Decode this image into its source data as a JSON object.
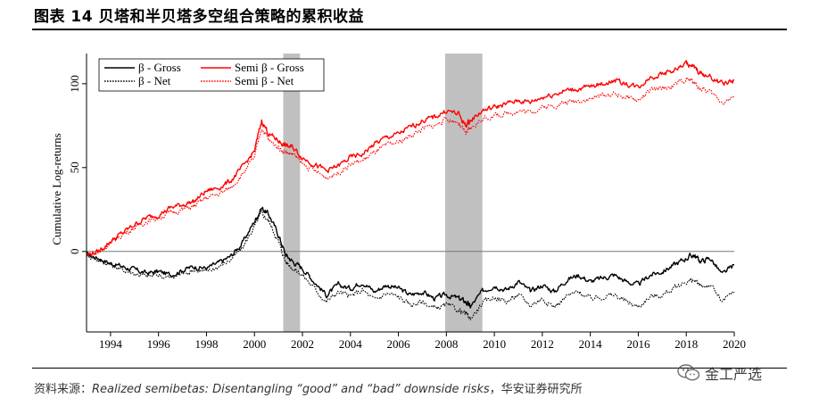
{
  "title": "图表 14 贝塔和半贝塔多空组合策略的累积收益",
  "source": {
    "prefix": "资料来源：",
    "citation": "Realized semibetas: Disentangling “good” and “bad” downside risks",
    "suffix": "，华安证券研究所"
  },
  "watermark": {
    "text": "金工严选",
    "icon": "wechat-icon"
  },
  "chart_data": {
    "type": "line",
    "title": "",
    "xlabel": "",
    "ylabel": "Cumulative Log-returns",
    "xlim": [
      1993,
      2020
    ],
    "ylim": [
      -48,
      118
    ],
    "x_ticks": [
      "1994",
      "1996",
      "1998",
      "2000",
      "2002",
      "2004",
      "2006",
      "2008",
      "2010",
      "2012",
      "2014",
      "2016",
      "2018",
      "2020"
    ],
    "y_ticks": [
      "0",
      "50",
      "100"
    ],
    "zero_line": 0,
    "legend": {
      "position": "top-left"
    },
    "shaded_periods": [
      [
        2001.2,
        2001.9
      ],
      [
        2007.95,
        2009.5
      ]
    ],
    "series_style": {
      "beta_gross": {
        "color": "#000000",
        "dash": ""
      },
      "beta_net": {
        "color": "#000000",
        "dash": "1.6 1.4"
      },
      "semi_gross": {
        "color": "#ff0000",
        "dash": ""
      },
      "semi_net": {
        "color": "#ff0000",
        "dash": "1.6 1.4"
      }
    },
    "x": [
      1993.0,
      1993.5,
      1994.0,
      1994.5,
      1995.0,
      1995.5,
      1996.0,
      1996.5,
      1997.0,
      1997.5,
      1998.0,
      1998.5,
      1999.0,
      1999.5,
      2000.0,
      2000.3,
      2000.6,
      2001.0,
      2001.3,
      2001.6,
      2002.0,
      2002.5,
      2003.0,
      2003.5,
      2004.0,
      2004.5,
      2005.0,
      2005.5,
      2006.0,
      2006.5,
      2007.0,
      2007.5,
      2008.0,
      2008.5,
      2008.8,
      2009.0,
      2009.5,
      2010.0,
      2010.5,
      2011.0,
      2011.5,
      2012.0,
      2012.5,
      2013.0,
      2013.5,
      2014.0,
      2014.5,
      2015.0,
      2015.5,
      2016.0,
      2016.5,
      2017.0,
      2017.5,
      2018.0,
      2018.3,
      2018.6,
      2019.0,
      2019.5,
      2020.0
    ],
    "series": [
      {
        "key": "beta_gross",
        "name": "β - Gross",
        "values": [
          -2,
          -4,
          -7,
          -9,
          -11,
          -13,
          -12,
          -14,
          -11,
          -9,
          -10,
          -7,
          -3,
          5,
          18,
          26,
          22,
          10,
          -2,
          -6,
          -10,
          -18,
          -26,
          -20,
          -22,
          -18,
          -24,
          -20,
          -22,
          -26,
          -24,
          -28,
          -26,
          -28,
          -30,
          -33,
          -24,
          -20,
          -23,
          -18,
          -24,
          -20,
          -24,
          -17,
          -14,
          -18,
          -16,
          -14,
          -18,
          -20,
          -14,
          -12,
          -8,
          -4,
          -2,
          -6,
          -4,
          -14,
          -8
        ]
      },
      {
        "key": "beta_net",
        "name": "β - Net",
        "values": [
          -2,
          -5,
          -8,
          -11,
          -13,
          -15,
          -14,
          -16,
          -13,
          -11,
          -12,
          -9,
          -5,
          2,
          15,
          23,
          18,
          6,
          -6,
          -10,
          -14,
          -22,
          -30,
          -24,
          -27,
          -23,
          -29,
          -25,
          -27,
          -32,
          -30,
          -34,
          -32,
          -35,
          -37,
          -40,
          -31,
          -27,
          -30,
          -26,
          -32,
          -28,
          -33,
          -27,
          -24,
          -28,
          -27,
          -26,
          -30,
          -33,
          -27,
          -26,
          -22,
          -18,
          -17,
          -21,
          -20,
          -30,
          -24
        ]
      },
      {
        "key": "semi_gross",
        "name": "Semi β - Gross",
        "values": [
          -2,
          0,
          6,
          11,
          16,
          20,
          22,
          26,
          28,
          30,
          36,
          38,
          42,
          50,
          60,
          78,
          70,
          66,
          63,
          62,
          56,
          52,
          48,
          51,
          56,
          58,
          64,
          68,
          70,
          74,
          78,
          80,
          84,
          82,
          75,
          78,
          84,
          86,
          88,
          90,
          89,
          92,
          94,
          96,
          97,
          98,
          100,
          102,
          100,
          98,
          104,
          106,
          108,
          112,
          110,
          106,
          104,
          100,
          102
        ]
      },
      {
        "key": "semi_net",
        "name": "Semi β - Net",
        "values": [
          -2,
          -1,
          5,
          10,
          14,
          18,
          20,
          23,
          25,
          27,
          32,
          34,
          38,
          46,
          56,
          74,
          66,
          62,
          59,
          58,
          52,
          48,
          44,
          47,
          52,
          54,
          59,
          63,
          65,
          69,
          73,
          75,
          79,
          77,
          70,
          73,
          79,
          81,
          82,
          84,
          83,
          86,
          87,
          89,
          90,
          91,
          93,
          94,
          92,
          90,
          96,
          97,
          99,
          103,
          101,
          97,
          95,
          89,
          92
        ]
      }
    ]
  }
}
